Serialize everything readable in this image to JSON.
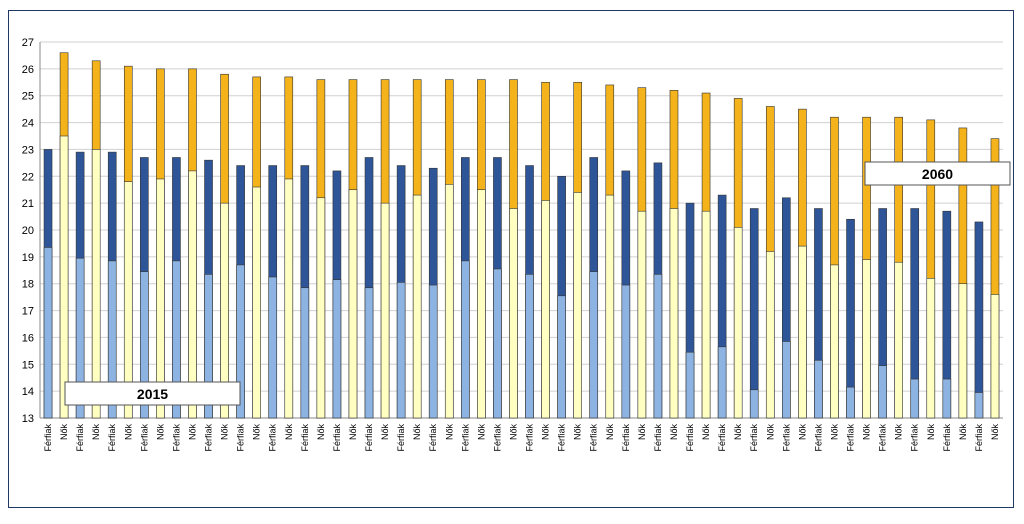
{
  "chart_data": {
    "type": "overlap-bar",
    "categories": [
      "Férfiak",
      "Nők",
      "Férfiak",
      "Nők",
      "Férfiak",
      "Nők",
      "Férfiak",
      "Nők",
      "Férfiak",
      "Nők",
      "Férfiak",
      "Nők",
      "Férfiak",
      "Nők",
      "Férfiak",
      "Nők",
      "Férfiak",
      "Nők",
      "Férfiak",
      "Nők",
      "Férfiak",
      "Nők",
      "Férfiak",
      "Nők",
      "Férfiak",
      "Nők",
      "Férfiak",
      "Nők",
      "Férfiak",
      "Nők",
      "Férfiak",
      "Nők",
      "Férfiak",
      "Nők",
      "Férfiak",
      "Nők",
      "Férfiak",
      "Nők",
      "Férfiak",
      "Nők",
      "Férfiak",
      "Nők",
      "Férfiak",
      "Nők",
      "Férfiak",
      "Nők",
      "Férfiak",
      "Nők",
      "Férfiak",
      "Nők",
      "Férfiak",
      "Nők",
      "Férfiak",
      "Nők",
      "Férfiak",
      "Nők",
      "Férfiak",
      "Nők",
      "Férfiak",
      "Nők"
    ],
    "series": [
      {
        "name": "2060",
        "colors": [
          "#2e5597",
          "#f4b31a"
        ],
        "values": [
          23.0,
          26.6,
          22.9,
          26.3,
          22.9,
          26.1,
          22.7,
          26.0,
          22.7,
          26.0,
          22.6,
          25.8,
          22.4,
          25.7,
          22.4,
          25.7,
          22.4,
          25.6,
          22.2,
          25.6,
          22.7,
          25.6,
          22.4,
          25.6,
          22.3,
          25.6,
          22.7,
          25.6,
          22.7,
          25.6,
          22.4,
          25.5,
          22.0,
          25.5,
          22.7,
          25.4,
          22.2,
          25.3,
          22.5,
          25.2,
          21.0,
          25.1,
          21.3,
          24.9,
          20.8,
          24.6,
          21.2,
          24.5,
          20.8,
          24.2,
          20.4,
          24.2,
          20.8,
          24.2,
          20.8,
          24.1,
          20.7,
          23.8,
          20.3,
          23.4
        ]
      },
      {
        "name": "2015",
        "colors": [
          "#8db3e2",
          "#ffffc2"
        ],
        "values": [
          19.35,
          23.5,
          18.95,
          23.0,
          18.85,
          21.8,
          18.45,
          21.9,
          18.85,
          22.2,
          18.35,
          21.0,
          18.7,
          21.6,
          18.25,
          21.9,
          17.85,
          21.2,
          18.15,
          21.5,
          17.85,
          21.0,
          18.05,
          21.3,
          17.95,
          21.7,
          18.85,
          21.5,
          18.55,
          20.8,
          18.35,
          21.1,
          17.55,
          21.4,
          18.45,
          21.3,
          17.95,
          20.7,
          18.35,
          20.8,
          15.45,
          20.7,
          15.65,
          20.1,
          14.05,
          19.2,
          15.85,
          19.4,
          15.15,
          18.7,
          14.15,
          18.9,
          14.95,
          18.8,
          14.45,
          18.2,
          14.45,
          18.0,
          13.95,
          17.6
        ]
      }
    ],
    "ylim": [
      13,
      27
    ],
    "yticks": [
      13,
      14,
      15,
      16,
      17,
      18,
      19,
      20,
      21,
      22,
      23,
      24,
      25,
      26,
      27
    ],
    "grid": true
  }
}
